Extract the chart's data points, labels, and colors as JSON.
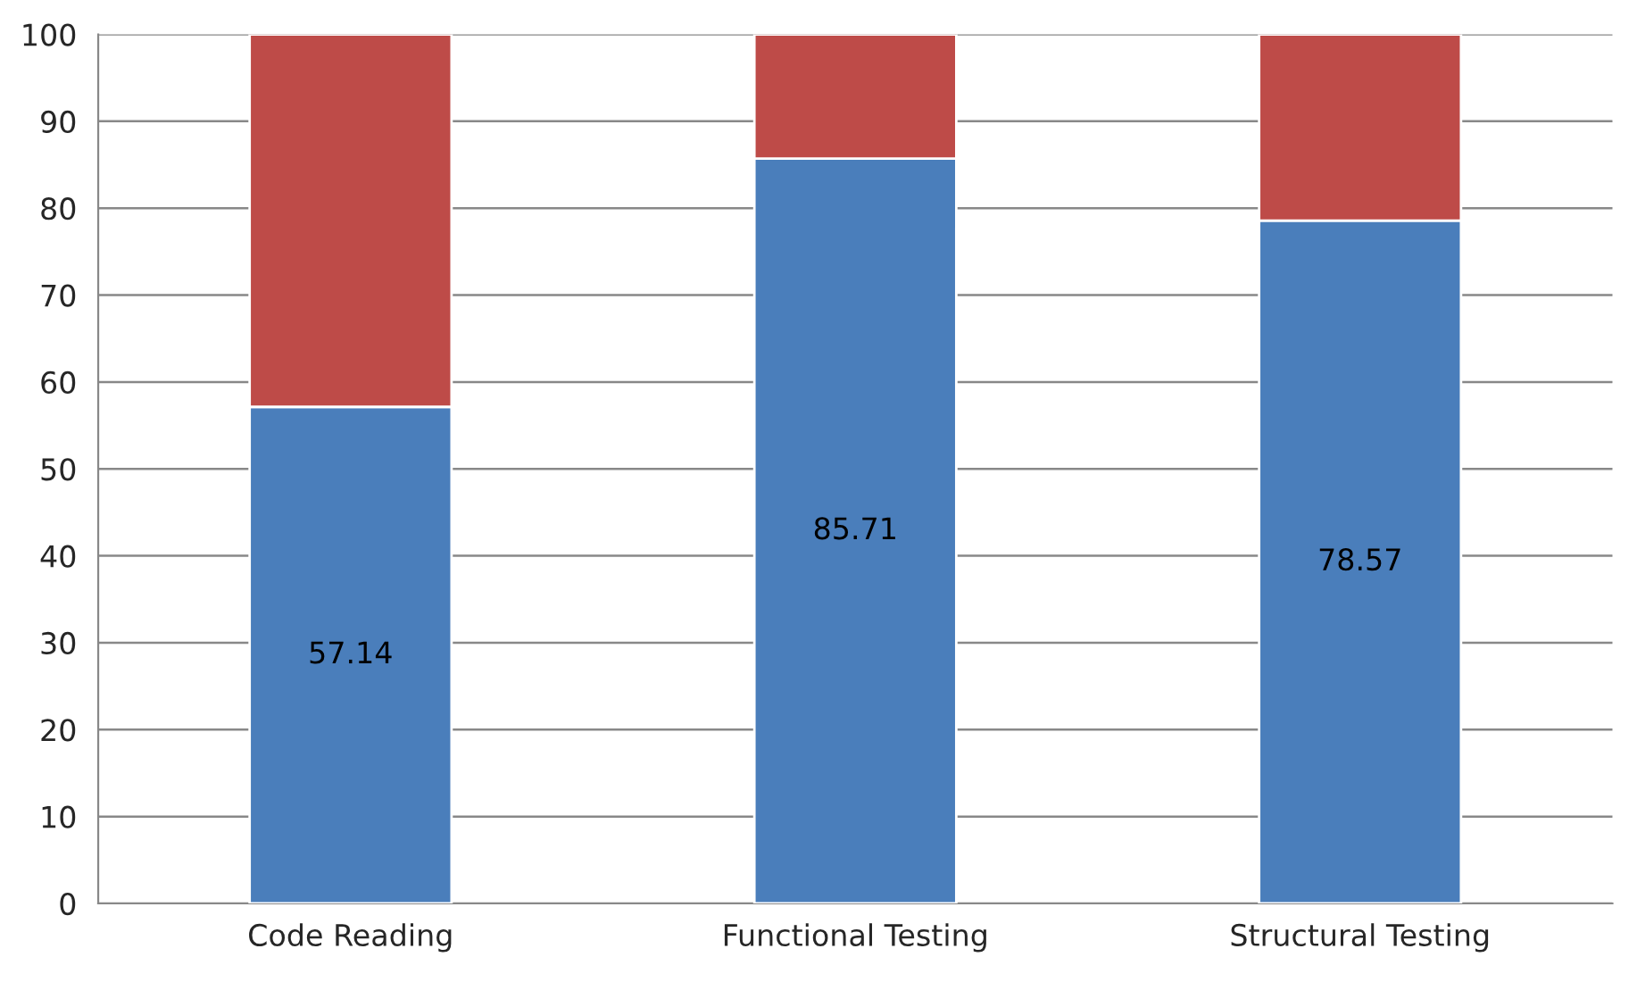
{
  "chart_data": {
    "type": "bar",
    "stacked": true,
    "categories": [
      "Code Reading",
      "Functional Testing",
      "Structural Testing"
    ],
    "series": [
      {
        "color": "#4a7ebb",
        "values": [
          57.14,
          85.71,
          78.57
        ],
        "value_labels": [
          "57.14",
          "85.71",
          "78.57"
        ]
      },
      {
        "color": "#be4b48",
        "values": [
          42.86,
          14.29,
          21.43
        ]
      }
    ],
    "ylim": [
      0,
      100
    ],
    "yticks": [
      0,
      10,
      20,
      30,
      40,
      50,
      60,
      70,
      80,
      90,
      100
    ],
    "grid": "y",
    "legend": false
  }
}
